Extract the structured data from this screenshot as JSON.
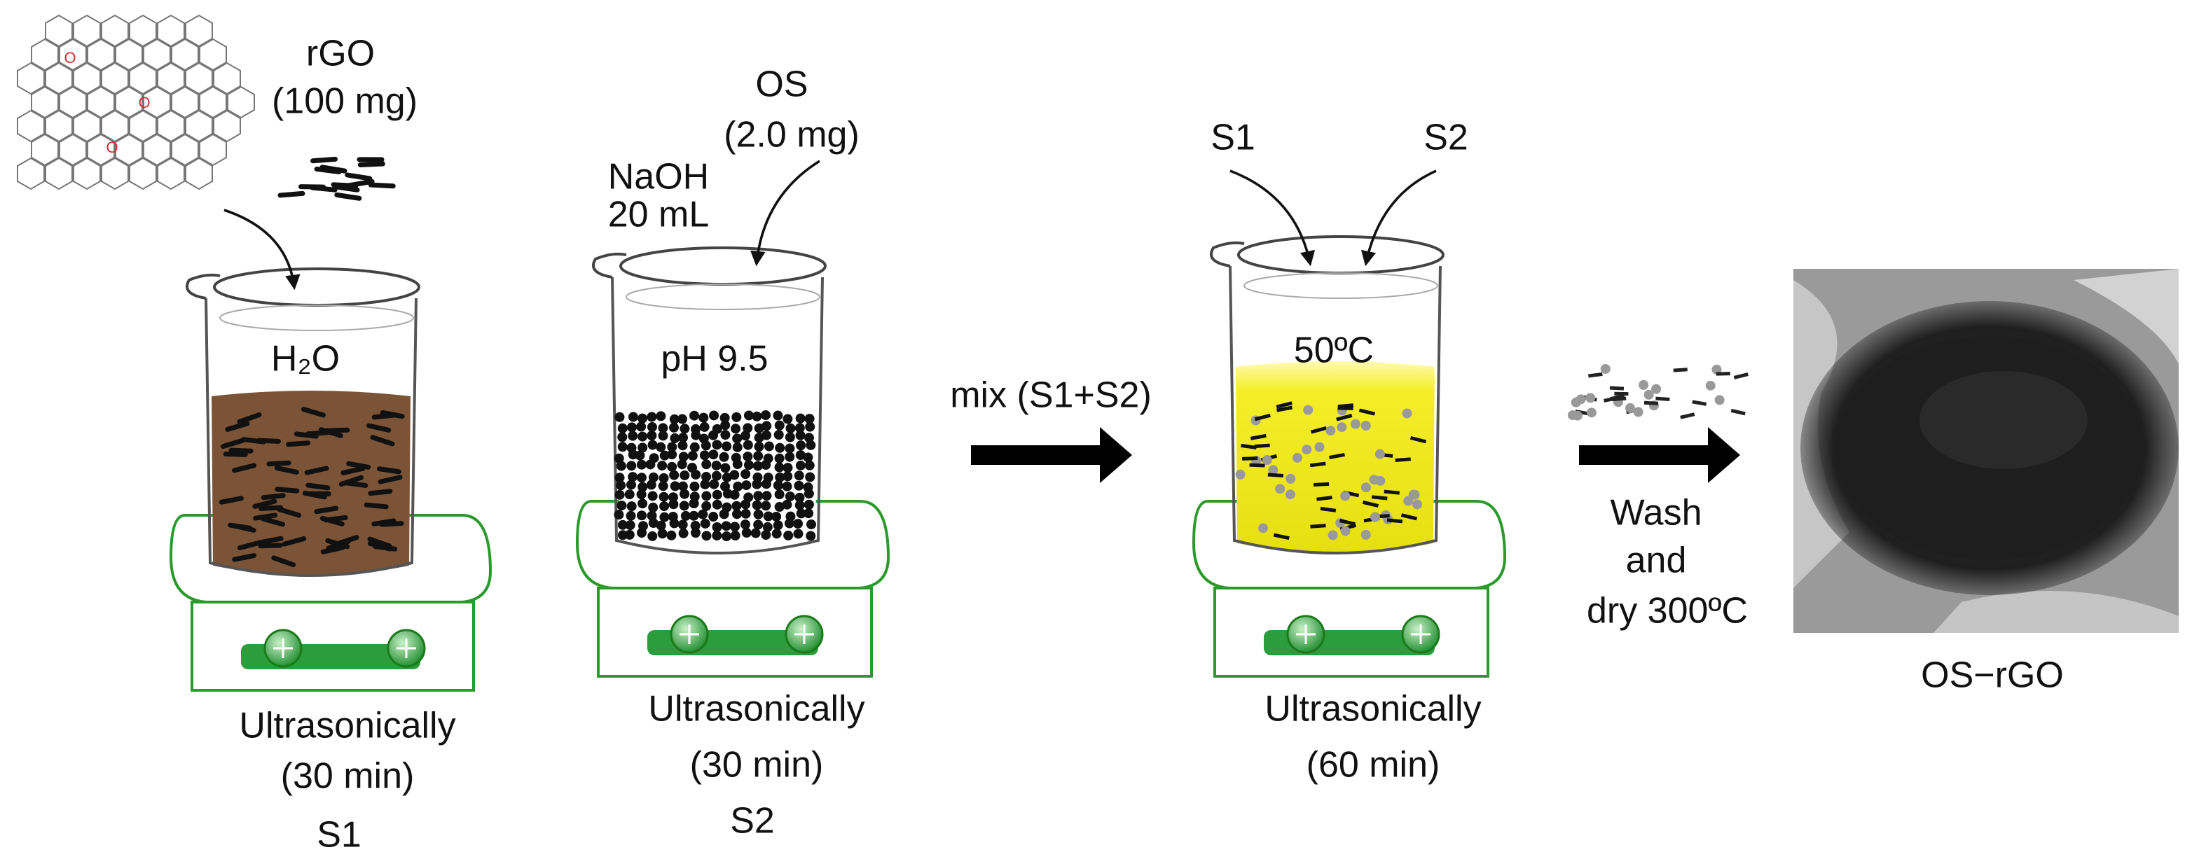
{
  "step1": {
    "material": "rGO",
    "amount": "(100 mg)",
    "solvent": "H₂O",
    "oxygen_label": "O",
    "process": "Ultrasonically",
    "time": "(30 min)",
    "sample": "S1"
  },
  "step2": {
    "material": "OS",
    "amount": "(2.0 mg)",
    "base": "NaOH",
    "volume": "20 mL",
    "ph": "pH 9.5",
    "process": "Ultrasonically",
    "time": "(30 min)",
    "sample": "S2"
  },
  "mixing": {
    "label": "mix (S1+S2)"
  },
  "step3": {
    "input1": "S1",
    "input2": "S2",
    "temperature": "50ºC",
    "process": "Ultrasonically",
    "time": "(60 min)"
  },
  "finishing": {
    "line1": "Wash",
    "line2": "and",
    "line3": "dry 300ºC"
  },
  "product": {
    "label": "OS−rGO"
  }
}
